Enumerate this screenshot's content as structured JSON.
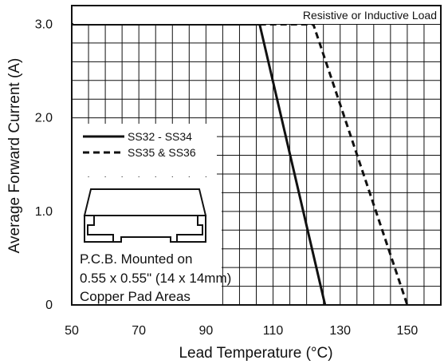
{
  "chart_data": {
    "type": "line",
    "xlabel": "Lead Temperature (°C)",
    "ylabel": "Average Forward Current (A)",
    "xlim": [
      50,
      160
    ],
    "ylim": [
      0,
      3.2
    ],
    "x_ticks": [
      "50",
      "70",
      "90",
      "110",
      "130",
      "150"
    ],
    "x_tick_values": [
      50,
      70,
      90,
      110,
      130,
      150
    ],
    "y_ticks": [
      "0",
      "1.0",
      "2.0",
      "3.0"
    ],
    "y_tick_values": [
      0,
      1.0,
      2.0,
      3.0
    ],
    "grid": true,
    "legend_position": "left",
    "series": [
      {
        "name": "SS32 - SS34",
        "style": "solid",
        "x": [
          50,
          106,
          125.5
        ],
        "y": [
          3.0,
          3.0,
          0
        ]
      },
      {
        "name": "SS35 & SS36",
        "style": "dashed",
        "x": [
          106,
          122,
          150
        ],
        "y": [
          3.0,
          3.0,
          0
        ]
      }
    ],
    "annotations": {
      "load": "Resistive or Inductive Load",
      "pcb_line1": "P.C.B. Mounted on",
      "pcb_line2": "0.55 x 0.55\" (14 x 14mm)",
      "pcb_line3": "Copper Pad Areas"
    }
  },
  "colors": {
    "ink": "#111111",
    "background": "#ffffff"
  },
  "icons": {
    "package": "smc-package-outline-icon"
  }
}
